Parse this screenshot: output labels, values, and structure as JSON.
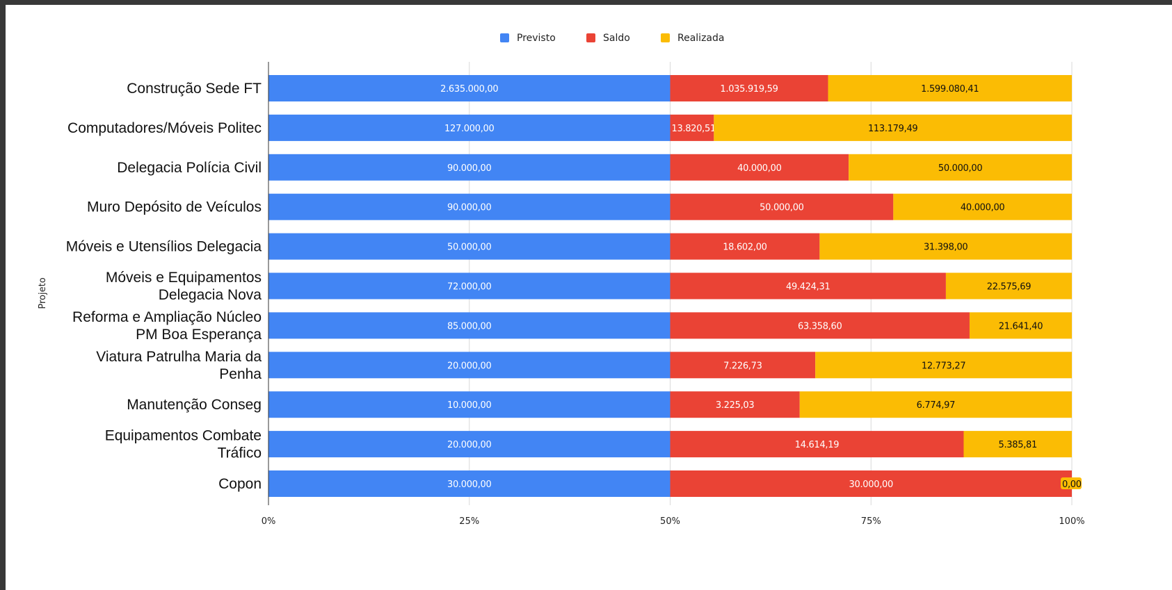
{
  "chart_data": {
    "type": "bar",
    "orientation": "horizontal",
    "stacking": "percent",
    "ylabel": "Projeto",
    "legend_position": "top",
    "xlim": [
      0,
      100
    ],
    "x_ticks": [
      "0%",
      "25%",
      "50%",
      "75%",
      "100%"
    ],
    "colors": {
      "Previsto": "#4285F4",
      "Saldo": "#EA4335",
      "Realizada": "#FBBC04"
    },
    "categories": [
      [
        "Construção Sede FT"
      ],
      [
        "Computadores/Móveis Politec"
      ],
      [
        "Delegacia Polícia Civil"
      ],
      [
        "Muro Depósito de Veículos"
      ],
      [
        "Móveis e Utensílios Delegacia"
      ],
      [
        "Móveis e Equipamentos",
        "Delegacia Nova"
      ],
      [
        "Reforma e Ampliação Núcleo",
        "PM Boa Esperança"
      ],
      [
        "Viatura Patrulha Maria da",
        "Penha"
      ],
      [
        "Manutenção Conseg"
      ],
      [
        "Equipamentos Combate",
        "Tráfico"
      ],
      [
        "Copon"
      ]
    ],
    "series": [
      {
        "name": "Previsto",
        "values": [
          2635000.0,
          127000.0,
          90000.0,
          90000.0,
          50000.0,
          72000.0,
          85000.0,
          20000.0,
          10000.0,
          20000.0,
          30000.0
        ],
        "labels": [
          "2.635.000,00",
          "127.000,00",
          "90.000,00",
          "90.000,00",
          "50.000,00",
          "72.000,00",
          "85.000,00",
          "20.000,00",
          "10.000,00",
          "20.000,00",
          "30.000,00"
        ]
      },
      {
        "name": "Saldo",
        "values": [
          1035919.59,
          13820.51,
          40000.0,
          50000.0,
          18602.0,
          49424.31,
          63358.6,
          7226.73,
          3225.03,
          14614.19,
          30000.0
        ],
        "labels": [
          "1.035.919,59",
          "13.820,51",
          "40.000,00",
          "50.000,00",
          "18.602,00",
          "49.424,31",
          "63.358,60",
          "7.226,73",
          "3.225,03",
          "14.614,19",
          "30.000,00"
        ]
      },
      {
        "name": "Realizada",
        "values": [
          1599080.41,
          113179.49,
          50000.0,
          40000.0,
          31398.0,
          22575.69,
          21641.4,
          12773.27,
          6774.97,
          5385.81,
          0.0
        ],
        "labels": [
          "1.599.080,41",
          "113.179,49",
          "50.000,00",
          "40.000,00",
          "31.398,00",
          "22.575,69",
          "21.641,40",
          "12.773,27",
          "6.774,97",
          "5.385,81",
          "0,00"
        ]
      }
    ]
  }
}
